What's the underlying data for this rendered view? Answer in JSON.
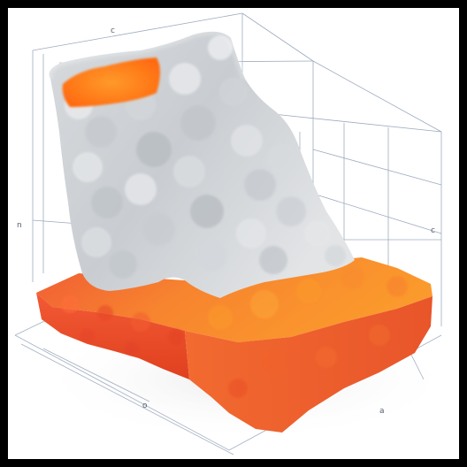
{
  "scene": {
    "background_color": "#ffffff",
    "frame_color": "#000000",
    "grid_line_color": "#7d8ea8",
    "smoke_colors": [
      "#f2f3f4",
      "#d9dcdf",
      "#b8bdc2",
      "#9fa4aa"
    ],
    "slab_colors": [
      "#f2542d",
      "#f7782f",
      "#fb9a2c",
      "#e0401f"
    ],
    "inner_glow_color": "#ff7a1a"
  },
  "tick_labels": {
    "top_mark": "c",
    "left_mark": "n",
    "right_mark": "c",
    "bottom_mark": "o",
    "corner_mark": "a"
  }
}
